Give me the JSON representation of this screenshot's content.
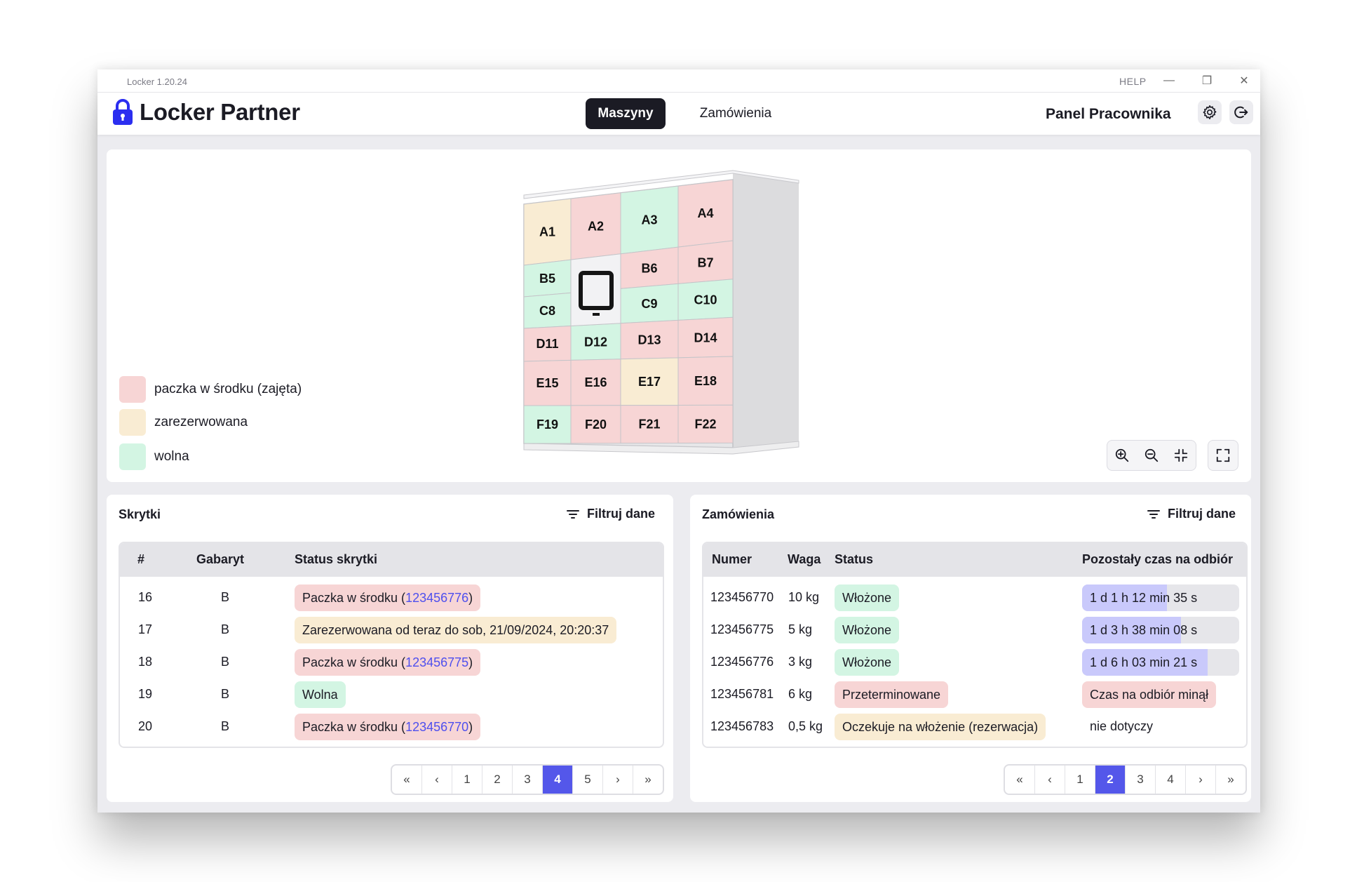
{
  "window": {
    "version": "Locker 1.20.24",
    "help": "HELP",
    "minimize_glyph": "—",
    "restore_glyph": "❐",
    "close_glyph": "✕"
  },
  "header": {
    "logo_text": "Locker Partner",
    "logo_icon": "lock-icon",
    "nav": [
      {
        "label": "Maszyny",
        "active": true
      },
      {
        "label": "Zamówienia",
        "active": false
      }
    ],
    "panel_label": "Panel Pracownika",
    "settings_icon": "gear-icon",
    "logout_icon": "logout-icon"
  },
  "colors": {
    "occupied": "#f7d5d5",
    "reserved": "#f9ecd3",
    "free": "#d3f5e3",
    "accent": "#5457ea",
    "progress": "#c9c9fb"
  },
  "legend": [
    {
      "label": "paczka w środku (zajęta)",
      "status": "occupied"
    },
    {
      "label": "zarezerwowana",
      "status": "reserved"
    },
    {
      "label": "wolna",
      "status": "free"
    }
  ],
  "locker": {
    "cells": [
      {
        "id": "A1",
        "status": "reserved"
      },
      {
        "id": "A2",
        "status": "occupied"
      },
      {
        "id": "A3",
        "status": "free"
      },
      {
        "id": "A4",
        "status": "occupied"
      },
      {
        "id": "B5",
        "status": "free"
      },
      {
        "id": "B6",
        "status": "occupied"
      },
      {
        "id": "B7",
        "status": "occupied"
      },
      {
        "id": "C8",
        "status": "free"
      },
      {
        "id": "C9",
        "status": "free"
      },
      {
        "id": "C10",
        "status": "free"
      },
      {
        "id": "D11",
        "status": "occupied"
      },
      {
        "id": "D12",
        "status": "free"
      },
      {
        "id": "D13",
        "status": "occupied"
      },
      {
        "id": "D14",
        "status": "occupied"
      },
      {
        "id": "E15",
        "status": "occupied"
      },
      {
        "id": "E16",
        "status": "occupied"
      },
      {
        "id": "E17",
        "status": "reserved"
      },
      {
        "id": "E18",
        "status": "occupied"
      },
      {
        "id": "F19",
        "status": "free"
      },
      {
        "id": "F20",
        "status": "occupied"
      },
      {
        "id": "F21",
        "status": "occupied"
      },
      {
        "id": "F22",
        "status": "occupied"
      }
    ],
    "screen_icon": "terminal-screen-icon",
    "zoom_controls": [
      "zoom-in-icon",
      "zoom-out-icon",
      "center-icon",
      "fullscreen-icon"
    ]
  },
  "skrytki": {
    "title": "Skrytki",
    "filter_label": "Filtruj dane",
    "columns": [
      "#",
      "Gabaryt",
      "Status skrytki"
    ],
    "rows": [
      {
        "num": "16",
        "size": "B",
        "status": "occupied",
        "text": "Paczka w środku (",
        "link": "123456776",
        "suffix": ")"
      },
      {
        "num": "17",
        "size": "B",
        "status": "reserved",
        "text": "Zarezerwowana od teraz do sob, 21/09/2024, 20:20:37",
        "link": "",
        "suffix": ""
      },
      {
        "num": "18",
        "size": "B",
        "status": "occupied",
        "text": "Paczka w środku (",
        "link": "123456775",
        "suffix": ")"
      },
      {
        "num": "19",
        "size": "B",
        "status": "free",
        "text": "Wolna",
        "link": "",
        "suffix": ""
      },
      {
        "num": "20",
        "size": "B",
        "status": "occupied",
        "text": "Paczka w środku (",
        "link": "123456770",
        "suffix": ")"
      }
    ],
    "pagination": {
      "pages": [
        "1",
        "2",
        "3",
        "4",
        "5"
      ],
      "current": "4"
    }
  },
  "zamowienia": {
    "title": "Zamówienia",
    "filter_label": "Filtruj dane",
    "columns": [
      "Numer",
      "Waga",
      "Status",
      "Pozostały czas na odbiór"
    ],
    "rows": [
      {
        "num": "123456770",
        "weight": "10 kg",
        "status": "Włożone",
        "status_type": "free",
        "time": "1 d 1 h 12 min 35 s",
        "time_type": "progress",
        "progress": 0.54
      },
      {
        "num": "123456775",
        "weight": "5 kg",
        "status": "Włożone",
        "status_type": "free",
        "time": "1 d 3 h 38 min 08 s",
        "time_type": "progress",
        "progress": 0.63
      },
      {
        "num": "123456776",
        "weight": "3 kg",
        "status": "Włożone",
        "status_type": "free",
        "time": "1 d 6 h 03 min 21 s",
        "time_type": "progress",
        "progress": 0.8
      },
      {
        "num": "123456781",
        "weight": "6 kg",
        "status": "Przeterminowane",
        "status_type": "occupied",
        "time": "Czas na odbiór minął",
        "time_type": "expired",
        "progress": 0
      },
      {
        "num": "123456783",
        "weight": "0,5 kg",
        "status": "Oczekuje na włożenie (rezerwacja)",
        "status_type": "reserved",
        "time": "nie dotyczy",
        "time_type": "plain",
        "progress": 0
      }
    ],
    "pagination": {
      "pages": [
        "1",
        "2",
        "3",
        "4"
      ],
      "current": "2"
    }
  },
  "pager_glyphs": {
    "first": "«",
    "prev": "‹",
    "next": "›",
    "last": "»"
  }
}
